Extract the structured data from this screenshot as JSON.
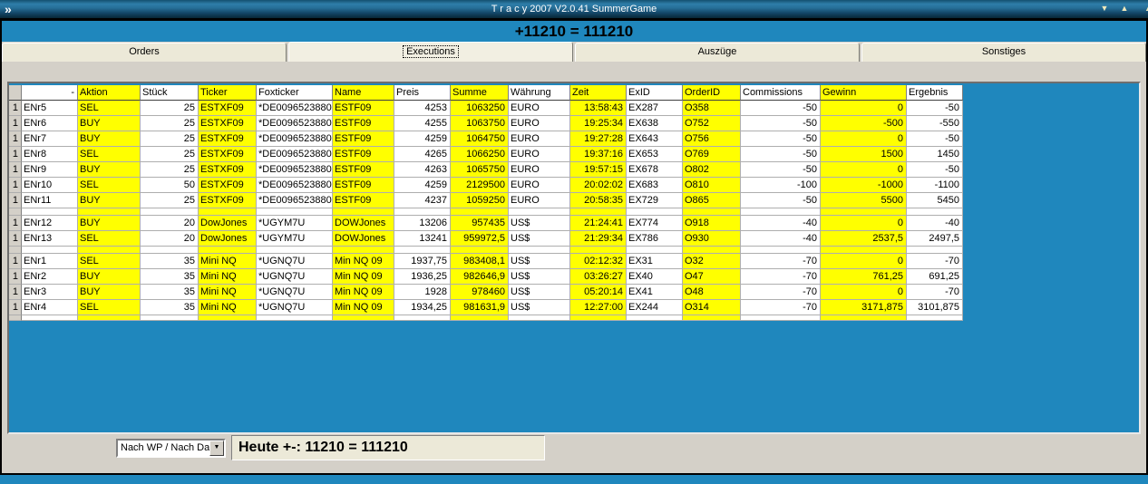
{
  "window": {
    "title": "T r a c y 2007 V2.0.41 SummerGame",
    "icon": "app-chevron-icon",
    "buttons": {
      "shade": "▼",
      "unshade": "▲"
    }
  },
  "header": {
    "total": "+11210 = 111210"
  },
  "tabs": [
    {
      "label": "Orders",
      "active": false
    },
    {
      "label": "Executions",
      "active": true
    },
    {
      "label": "Auszüge",
      "active": false
    },
    {
      "label": "Sonstiges",
      "active": false
    }
  ],
  "table": {
    "columns": [
      {
        "label": ""
      },
      {
        "label": "-"
      },
      {
        "label": "Aktion",
        "yellow": true
      },
      {
        "label": "Stück"
      },
      {
        "label": "Ticker",
        "yellow": true
      },
      {
        "label": "Foxticker"
      },
      {
        "label": "Name",
        "yellow": true
      },
      {
        "label": "Preis"
      },
      {
        "label": "Summe",
        "yellow": true
      },
      {
        "label": "Währung"
      },
      {
        "label": "Zeit",
        "yellow": true
      },
      {
        "label": "ExID"
      },
      {
        "label": "OrderID",
        "yellow": true
      },
      {
        "label": "Commissions"
      },
      {
        "label": "Gewinn",
        "yellow": true
      },
      {
        "label": "Ergebnis"
      }
    ],
    "rows": [
      {
        "cells": [
          "1",
          "ENr5",
          "SEL",
          "25",
          "ESTXF09",
          "*DE0096523880",
          "ESTF09",
          "4253",
          "1063250",
          "EURO",
          "13:58:43",
          "EX287",
          "O358",
          "-50",
          "0",
          "-50"
        ]
      },
      {
        "cells": [
          "1",
          "ENr6",
          "BUY",
          "25",
          "ESTXF09",
          "*DE0096523880",
          "ESTF09",
          "4255",
          "1063750",
          "EURO",
          "19:25:34",
          "EX638",
          "O752",
          "-50",
          "-500",
          "-550"
        ]
      },
      {
        "cells": [
          "1",
          "ENr7",
          "BUY",
          "25",
          "ESTXF09",
          "*DE0096523880",
          "ESTF09",
          "4259",
          "1064750",
          "EURO",
          "19:27:28",
          "EX643",
          "O756",
          "-50",
          "0",
          "-50"
        ]
      },
      {
        "cells": [
          "1",
          "ENr8",
          "SEL",
          "25",
          "ESTXF09",
          "*DE0096523880",
          "ESTF09",
          "4265",
          "1066250",
          "EURO",
          "19:37:16",
          "EX653",
          "O769",
          "-50",
          "1500",
          "1450"
        ]
      },
      {
        "cells": [
          "1",
          "ENr9",
          "BUY",
          "25",
          "ESTXF09",
          "*DE0096523880",
          "ESTF09",
          "4263",
          "1065750",
          "EURO",
          "19:57:15",
          "EX678",
          "O802",
          "-50",
          "0",
          "-50"
        ]
      },
      {
        "cells": [
          "1",
          "ENr10",
          "SEL",
          "50",
          "ESTXF09",
          "*DE0096523880",
          "ESTF09",
          "4259",
          "2129500",
          "EURO",
          "20:02:02",
          "EX683",
          "O810",
          "-100",
          "-1000",
          "-1100"
        ]
      },
      {
        "cells": [
          "1",
          "ENr11",
          "BUY",
          "25",
          "ESTXF09",
          "*DE0096523880",
          "ESTF09",
          "4237",
          "1059250",
          "EURO",
          "20:58:35",
          "EX729",
          "O865",
          "-50",
          "5500",
          "5450"
        ]
      },
      {
        "sep": true
      },
      {
        "cells": [
          "1",
          "ENr12",
          "BUY",
          "20",
          "DowJones",
          "*UGYM7U",
          "DOWJones",
          "13206",
          "957435",
          "US$",
          "21:24:41",
          "EX774",
          "O918",
          "-40",
          "0",
          "-40"
        ]
      },
      {
        "cells": [
          "1",
          "ENr13",
          "SEL",
          "20",
          "DowJones",
          "*UGYM7U",
          "DOWJones",
          "13241",
          "959972,5",
          "US$",
          "21:29:34",
          "EX786",
          "O930",
          "-40",
          "2537,5",
          "2497,5"
        ]
      },
      {
        "sep": true
      },
      {
        "cells": [
          "1",
          "ENr1",
          "SEL",
          "35",
          "Mini NQ",
          "*UGNQ7U",
          "Min NQ 09",
          "1937,75",
          "983408,1",
          "US$",
          "02:12:32",
          "EX31",
          "O32",
          "-70",
          "0",
          "-70"
        ]
      },
      {
        "cells": [
          "1",
          "ENr2",
          "BUY",
          "35",
          "Mini NQ",
          "*UGNQ7U",
          "Min NQ 09",
          "1936,25",
          "982646,9",
          "US$",
          "03:26:27",
          "EX40",
          "O47",
          "-70",
          "761,25",
          "691,25"
        ]
      },
      {
        "cells": [
          "1",
          "ENr3",
          "BUY",
          "35",
          "Mini NQ",
          "*UGNQ7U",
          "Min NQ 09",
          "1928",
          "978460",
          "US$",
          "05:20:14",
          "EX41",
          "O48",
          "-70",
          "0",
          "-70"
        ]
      },
      {
        "cells": [
          "1",
          "ENr4",
          "SEL",
          "35",
          "Mini NQ",
          "*UGNQ7U",
          "Min NQ 09",
          "1934,25",
          "981631,9",
          "US$",
          "12:27:00",
          "EX244",
          "O314",
          "-70",
          "3171,875",
          "3101,875"
        ]
      },
      {
        "sep": true,
        "end": true
      }
    ]
  },
  "footer": {
    "filter_value": "Nach WP / Nach Da",
    "dropdown_arrow": "▼",
    "status": "Heute +-: 11210 = 111210"
  },
  "colors": {
    "accent_blue": "#1F87BD",
    "highlight_yellow": "#FFFF00",
    "window_gray": "#D4D0C8",
    "tab_beige": "#ECE9D8"
  }
}
